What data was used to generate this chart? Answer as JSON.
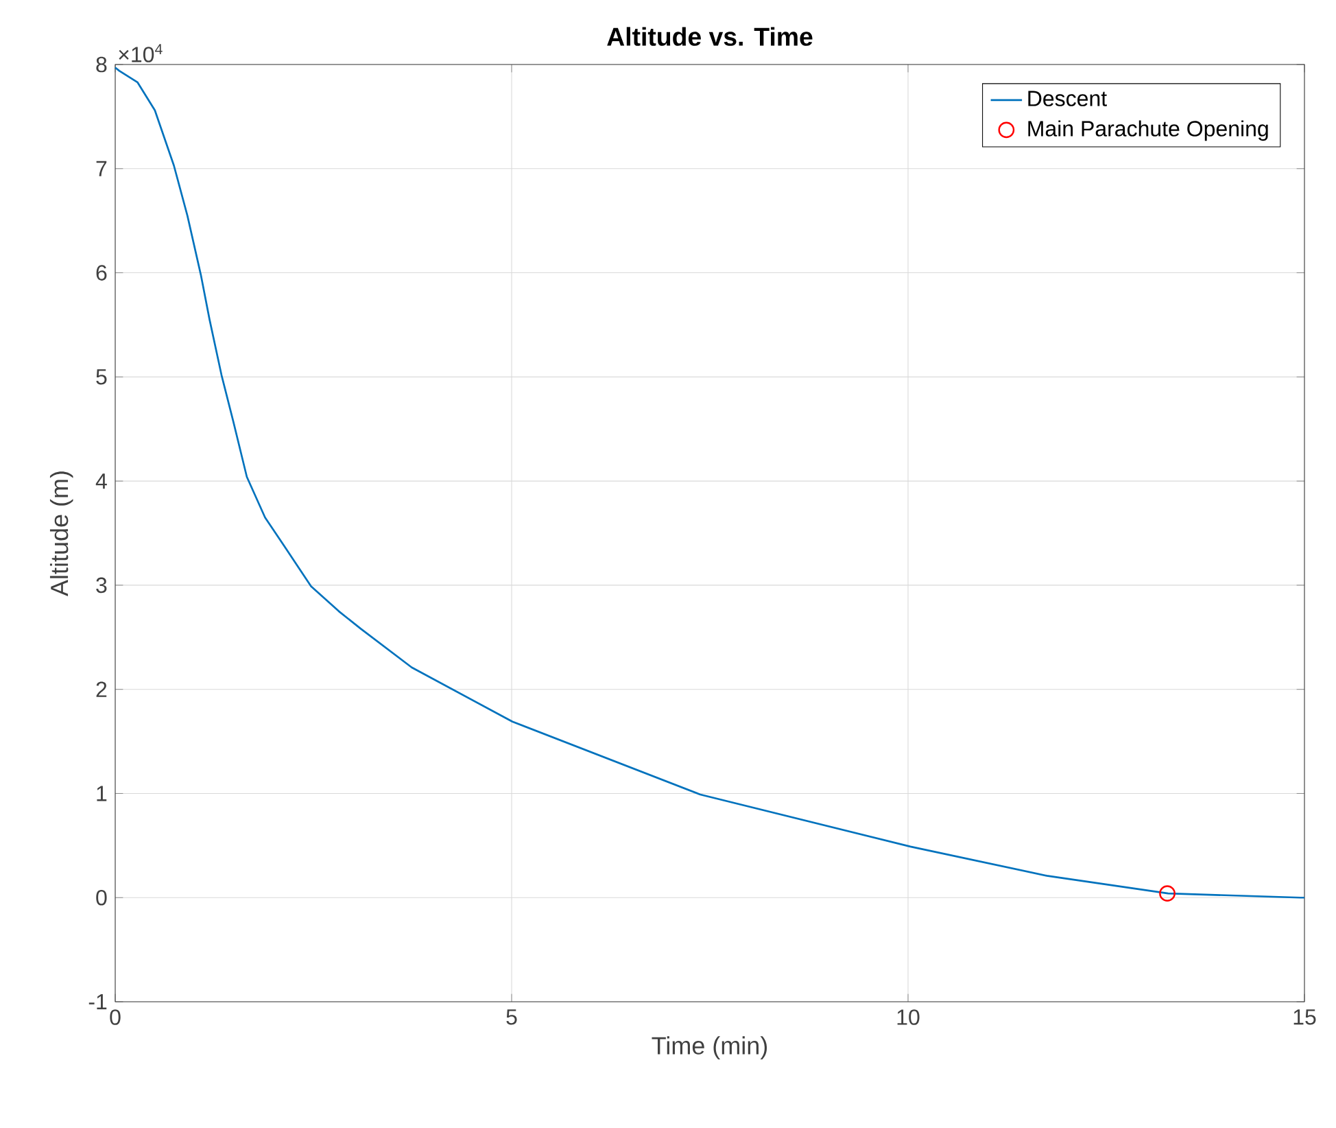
{
  "chart_data": {
    "type": "line",
    "title": "Altitude vs. Time",
    "xlabel": "Time (min)",
    "ylabel": "Altitude (m)",
    "annotations": [
      "×10$^{4}$"
    ],
    "xlim": [
      0,
      15
    ],
    "xticks": [
      0,
      5,
      10,
      15
    ],
    "ylim": [
      -1,
      8
    ],
    "yticks": [
      -1,
      0,
      1,
      2,
      3,
      4,
      5,
      6,
      7,
      8
    ],
    "grid": true,
    "legend": "top right",
    "series": [
      {
        "name": "Descent",
        "color": "#0072bd",
        "marker": "none",
        "x": [
          0,
          0.05,
          0.28,
          0.5,
          0.74,
          0.91,
          1.08,
          1.19,
          1.34,
          1.49,
          1.66,
          1.89,
          2.12,
          2.47,
          2.82,
          3.1,
          3.74,
          5.01,
          7.38,
          10.03,
          11.75,
          13.28,
          14.95,
          15
        ],
        "values": [
          7.97,
          7.94,
          7.83,
          7.56,
          7.03,
          6.55,
          5.98,
          5.55,
          5.02,
          4.57,
          4.04,
          3.65,
          3.39,
          2.99,
          2.75,
          2.58,
          2.21,
          1.69,
          0.99,
          0.49,
          0.21,
          0.04,
          0,
          0
        ]
      },
      {
        "name": "Main Parachute Opening",
        "type": "scatter",
        "color": "#ff0000",
        "marker": "circle",
        "x": [
          13.27
        ],
        "values": [
          0.04
        ]
      }
    ]
  }
}
